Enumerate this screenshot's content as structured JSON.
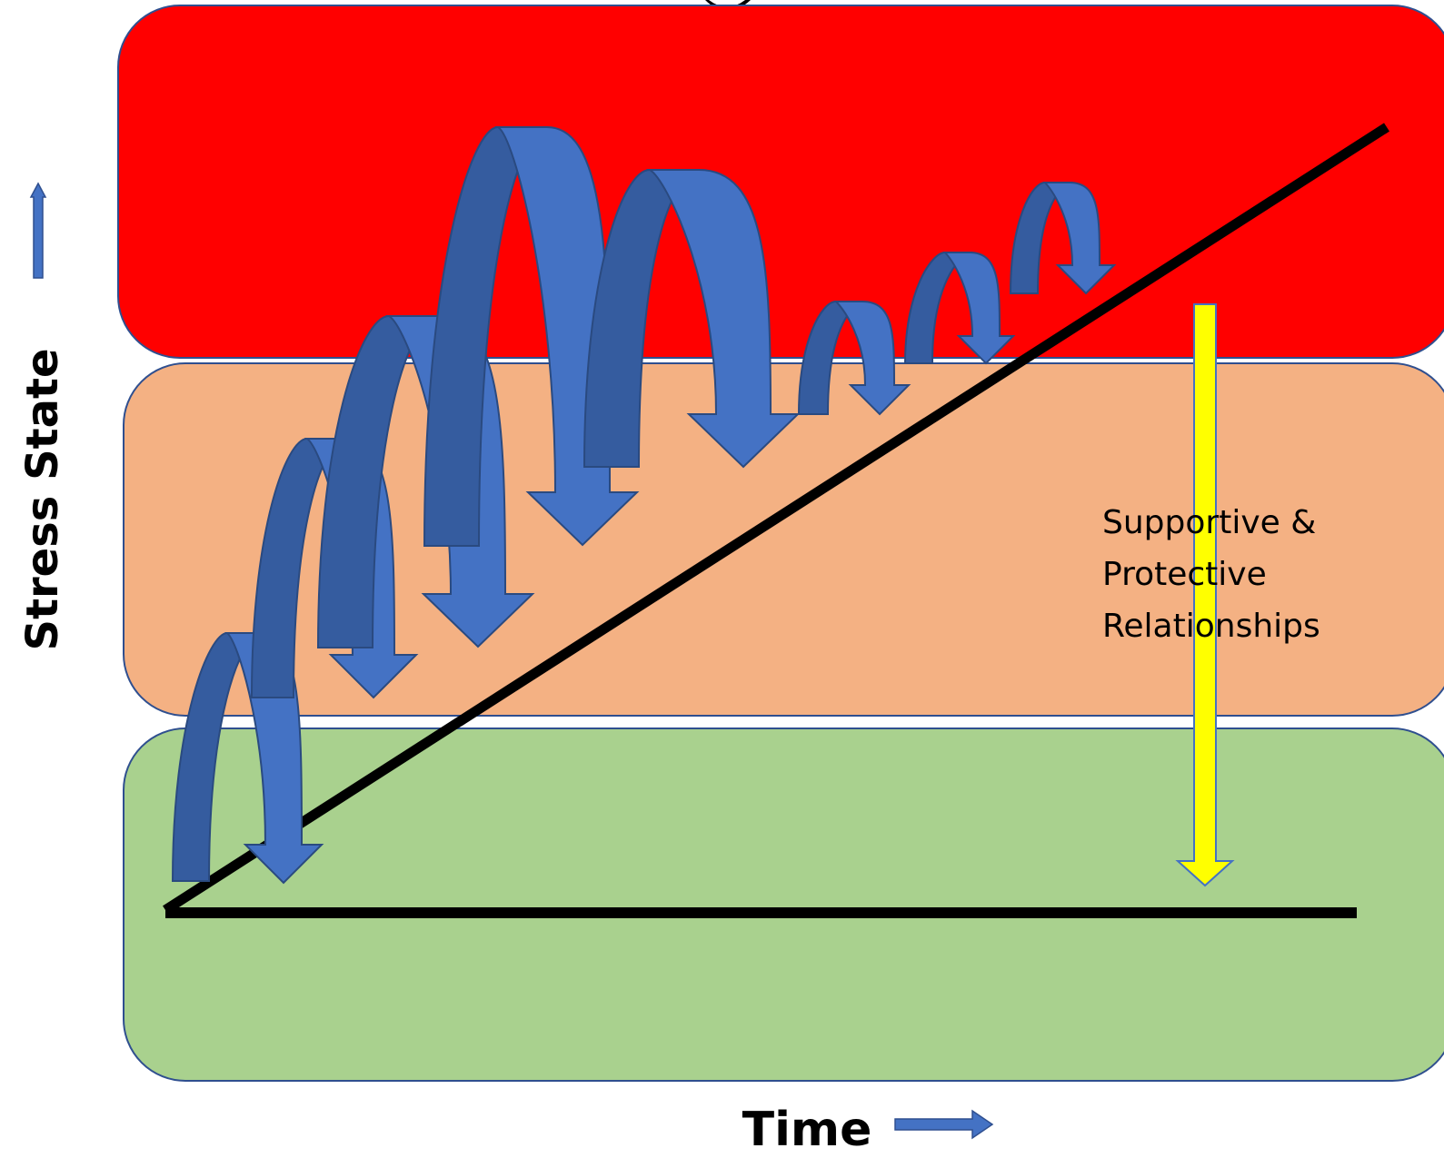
{
  "title": "",
  "axes": {
    "y_label": "Stress State",
    "x_label": "Time"
  },
  "zones": [
    {
      "id": "high",
      "color": "#ff0000"
    },
    {
      "id": "middle",
      "color": "#f4b183"
    },
    {
      "id": "low",
      "color": "#a9d18e"
    }
  ],
  "lines": {
    "baseline_color": "#000000",
    "trend_color": "#000000"
  },
  "colors": {
    "hop_light": "#4472c4",
    "hop_dark": "#355c9f",
    "support_arrow": "#ffff00"
  },
  "support": {
    "lines": [
      "Supportive &",
      "Protective",
      "Relationships"
    ]
  }
}
